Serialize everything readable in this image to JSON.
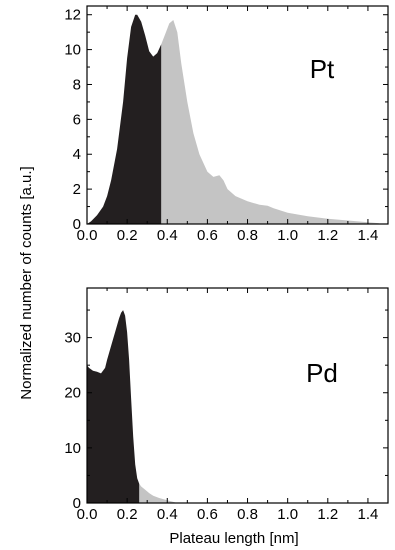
{
  "figure": {
    "ylabel": "Normalized number of counts [a.u.]",
    "xlabel": "Plateau length [nm]"
  },
  "colors": {
    "dark_fill": "#231f20",
    "light_fill": "#c4c4c4",
    "frame": "#000000"
  },
  "chart_data": [
    {
      "type": "area",
      "label": "Pt",
      "xlim": [
        0,
        1.5
      ],
      "ylim": [
        0,
        12.5
      ],
      "xticks": [
        0.0,
        0.2,
        0.4,
        0.6,
        0.8,
        1.0,
        1.2,
        1.4
      ],
      "xtick_labels": [
        "0.0",
        "0.2",
        "0.4",
        "0.6",
        "0.8",
        "1.0",
        "1.2",
        "1.4"
      ],
      "yticks": [
        0,
        2,
        4,
        6,
        8,
        10,
        12
      ],
      "ytick_labels": [
        "0",
        "2",
        "4",
        "6",
        "8",
        "10",
        "12"
      ],
      "split_x": 0.37,
      "x": [
        0.0,
        0.02,
        0.05,
        0.08,
        0.1,
        0.12,
        0.15,
        0.18,
        0.2,
        0.22,
        0.24,
        0.25,
        0.27,
        0.29,
        0.31,
        0.33,
        0.35,
        0.37,
        0.39,
        0.41,
        0.43,
        0.45,
        0.47,
        0.5,
        0.53,
        0.56,
        0.6,
        0.63,
        0.66,
        0.68,
        0.7,
        0.74,
        0.8,
        0.86,
        0.9,
        0.93,
        1.0,
        1.1,
        1.2,
        1.3,
        1.4,
        1.45,
        1.47
      ],
      "y": [
        0.0,
        0.15,
        0.5,
        1.0,
        1.6,
        2.5,
        4.3,
        7.0,
        9.5,
        11.3,
        12.0,
        12.0,
        11.6,
        10.8,
        9.9,
        9.6,
        9.8,
        10.3,
        10.9,
        11.5,
        11.7,
        11.0,
        9.2,
        7.0,
        5.2,
        4.0,
        3.0,
        2.7,
        2.8,
        2.5,
        2.0,
        1.6,
        1.3,
        1.1,
        1.05,
        0.9,
        0.65,
        0.45,
        0.3,
        0.2,
        0.1,
        0.05,
        0.0
      ]
    },
    {
      "type": "area",
      "label": "Pd",
      "xlim": [
        0,
        1.5
      ],
      "ylim": [
        0,
        39
      ],
      "xticks": [
        0.0,
        0.2,
        0.4,
        0.6,
        0.8,
        1.0,
        1.2,
        1.4
      ],
      "xtick_labels": [
        "0.0",
        "0.2",
        "0.4",
        "0.6",
        "0.8",
        "1.0",
        "1.2",
        "1.4"
      ],
      "yticks": [
        0,
        10,
        20,
        30
      ],
      "ytick_labels": [
        "0",
        "10",
        "20",
        "30"
      ],
      "split_x": 0.26,
      "x": [
        0.0,
        0.01,
        0.03,
        0.05,
        0.07,
        0.09,
        0.1,
        0.12,
        0.14,
        0.16,
        0.17,
        0.18,
        0.19,
        0.2,
        0.21,
        0.22,
        0.23,
        0.24,
        0.25,
        0.26,
        0.27,
        0.29,
        0.31,
        0.33,
        0.36,
        0.4,
        0.43,
        0.45
      ],
      "y": [
        25.0,
        24.5,
        24.0,
        23.8,
        23.5,
        24.5,
        26.0,
        28.5,
        31.0,
        33.5,
        34.5,
        35.0,
        34.0,
        31.0,
        26.0,
        19.0,
        12.0,
        7.0,
        4.5,
        3.5,
        3.0,
        2.4,
        1.8,
        1.3,
        0.9,
        0.5,
        0.2,
        0.0
      ]
    }
  ]
}
